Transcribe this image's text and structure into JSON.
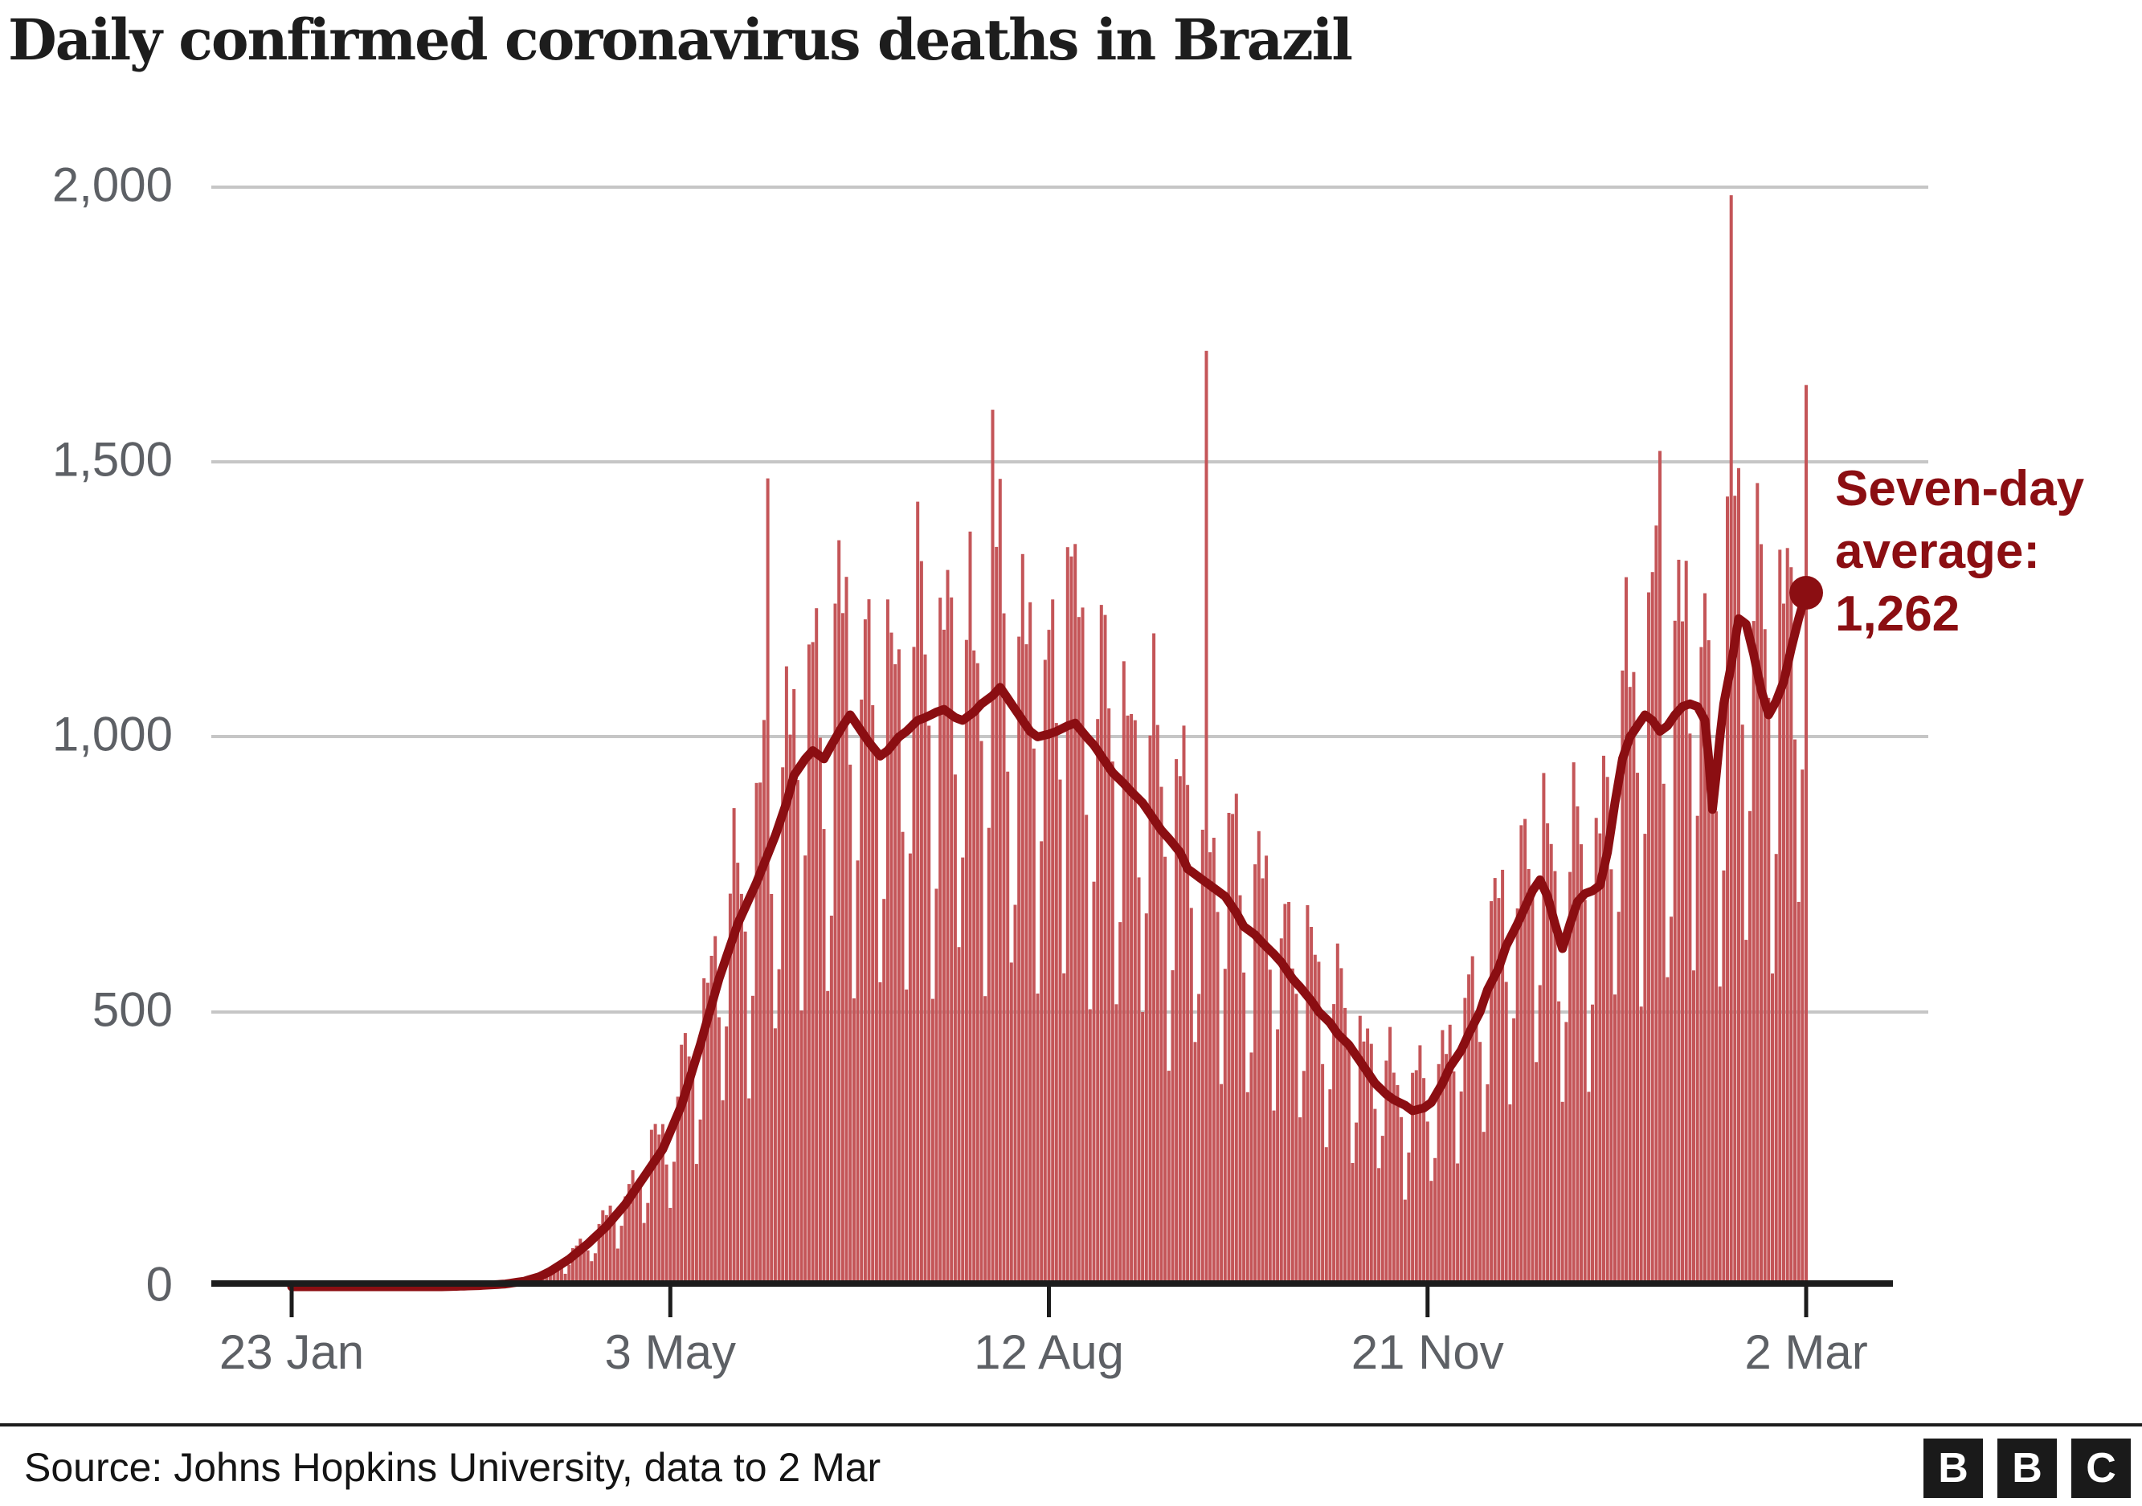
{
  "title": "Daily confirmed coronavirus deaths in Brazil",
  "source_line": "Source: Johns Hopkins University, data to 2 Mar",
  "annotation": {
    "line1": "Seven-day",
    "line2": "average:",
    "line3": "1,262",
    "value": 1262
  },
  "logo": {
    "letter1": "B",
    "letter2": "B",
    "letter3": "C"
  },
  "colors": {
    "bar": "#c45558",
    "avg_line": "#8b0e12",
    "grid": "#c6c6c6",
    "axis": "#1c1c1c",
    "tick_label": "#5d6065",
    "title_text": "#1d1d1d",
    "source_text": "#141414",
    "annotation_text": "#8b0e12",
    "logo_bg": "#1a1a1a",
    "logo_fg": "#ffffff",
    "background": "#ffffff"
  },
  "y_axis": {
    "ticks": [
      {
        "label": "2,000",
        "value": 2000
      },
      {
        "label": "1,500",
        "value": 1500
      },
      {
        "label": "1,000",
        "value": 1000
      },
      {
        "label": "500",
        "value": 500
      },
      {
        "label": "0",
        "value": 0
      }
    ],
    "max": 2000
  },
  "x_axis": {
    "ticks": [
      {
        "label": "23 Jan",
        "day": 0
      },
      {
        "label": "3 May",
        "day": 101
      },
      {
        "label": "12 Aug",
        "day": 202
      },
      {
        "label": "21 Nov",
        "day": 303
      },
      {
        "label": "2 Mar",
        "day": 404
      }
    ]
  },
  "chart_data": {
    "type": "bar+line",
    "title": "Daily confirmed coronavirus deaths in Brazil",
    "x_start": "23 Jan 2020",
    "x_end": "2 Mar 2021",
    "num_days": 405,
    "ylim": [
      0,
      2000
    ],
    "grid": "horizontal",
    "legend": "inline annotation at line end",
    "series_info": [
      {
        "name": "Daily confirmed deaths",
        "type": "bar"
      },
      {
        "name": "Seven-day average",
        "type": "line",
        "end_value": 1262
      }
    ],
    "seven_day_avg_anchors": [
      [
        0,
        0
      ],
      [
        40,
        0
      ],
      [
        50,
        2
      ],
      [
        57,
        5
      ],
      [
        62,
        10
      ],
      [
        66,
        18
      ],
      [
        69,
        28
      ],
      [
        74,
        50
      ],
      [
        79,
        78
      ],
      [
        84,
        110
      ],
      [
        89,
        150
      ],
      [
        94,
        200
      ],
      [
        99,
        250
      ],
      [
        104,
        330
      ],
      [
        109,
        440
      ],
      [
        114,
        560
      ],
      [
        119,
        660
      ],
      [
        124,
        735
      ],
      [
        129,
        820
      ],
      [
        132,
        880
      ],
      [
        134,
        930
      ],
      [
        137,
        960
      ],
      [
        139,
        975
      ],
      [
        142,
        960
      ],
      [
        144,
        985
      ],
      [
        147,
        1020
      ],
      [
        149,
        1040
      ],
      [
        152,
        1010
      ],
      [
        154,
        990
      ],
      [
        157,
        965
      ],
      [
        159,
        975
      ],
      [
        162,
        1000
      ],
      [
        164,
        1010
      ],
      [
        167,
        1030
      ],
      [
        169,
        1035
      ],
      [
        172,
        1045
      ],
      [
        174,
        1050
      ],
      [
        177,
        1035
      ],
      [
        179,
        1030
      ],
      [
        182,
        1045
      ],
      [
        184,
        1060
      ],
      [
        187,
        1075
      ],
      [
        189,
        1090
      ],
      [
        191,
        1070
      ],
      [
        194,
        1040
      ],
      [
        197,
        1010
      ],
      [
        199,
        1000
      ],
      [
        202,
        1005
      ],
      [
        204,
        1010
      ],
      [
        207,
        1020
      ],
      [
        209,
        1025
      ],
      [
        212,
        1000
      ],
      [
        214,
        985
      ],
      [
        217,
        955
      ],
      [
        219,
        935
      ],
      [
        222,
        915
      ],
      [
        224,
        900
      ],
      [
        227,
        880
      ],
      [
        229,
        860
      ],
      [
        232,
        830
      ],
      [
        234,
        815
      ],
      [
        237,
        790
      ],
      [
        239,
        760
      ],
      [
        242,
        745
      ],
      [
        244,
        735
      ],
      [
        247,
        720
      ],
      [
        249,
        710
      ],
      [
        252,
        680
      ],
      [
        254,
        655
      ],
      [
        257,
        640
      ],
      [
        259,
        625
      ],
      [
        262,
        605
      ],
      [
        264,
        590
      ],
      [
        267,
        560
      ],
      [
        269,
        545
      ],
      [
        272,
        520
      ],
      [
        274,
        500
      ],
      [
        277,
        480
      ],
      [
        279,
        460
      ],
      [
        282,
        440
      ],
      [
        284,
        420
      ],
      [
        287,
        390
      ],
      [
        289,
        370
      ],
      [
        292,
        350
      ],
      [
        294,
        340
      ],
      [
        297,
        330
      ],
      [
        299,
        320
      ],
      [
        302,
        325
      ],
      [
        304,
        335
      ],
      [
        307,
        370
      ],
      [
        309,
        400
      ],
      [
        312,
        430
      ],
      [
        314,
        460
      ],
      [
        317,
        500
      ],
      [
        319,
        540
      ],
      [
        322,
        580
      ],
      [
        324,
        620
      ],
      [
        327,
        660
      ],
      [
        329,
        690
      ],
      [
        331,
        720
      ],
      [
        333,
        740
      ],
      [
        335,
        710
      ],
      [
        337,
        660
      ],
      [
        339,
        615
      ],
      [
        341,
        660
      ],
      [
        343,
        700
      ],
      [
        345,
        715
      ],
      [
        347,
        720
      ],
      [
        349,
        730
      ],
      [
        351,
        790
      ],
      [
        353,
        880
      ],
      [
        355,
        960
      ],
      [
        357,
        1000
      ],
      [
        359,
        1020
      ],
      [
        361,
        1040
      ],
      [
        363,
        1030
      ],
      [
        365,
        1010
      ],
      [
        367,
        1020
      ],
      [
        369,
        1040
      ],
      [
        371,
        1055
      ],
      [
        373,
        1060
      ],
      [
        375,
        1055
      ],
      [
        377,
        1030
      ],
      [
        378,
        960
      ],
      [
        379,
        868
      ],
      [
        380,
        930
      ],
      [
        381,
        1000
      ],
      [
        382,
        1060
      ],
      [
        384,
        1130
      ],
      [
        386,
        1215
      ],
      [
        388,
        1205
      ],
      [
        390,
        1150
      ],
      [
        392,
        1085
      ],
      [
        394,
        1040
      ],
      [
        396,
        1065
      ],
      [
        398,
        1100
      ],
      [
        400,
        1160
      ],
      [
        402,
        1215
      ],
      [
        404,
        1262
      ]
    ],
    "weekday_factors_sun_to_sat": [
      0.54,
      0.74,
      1.18,
      1.26,
      1.22,
      1.14,
      0.92
    ],
    "start_weekday_offset": 4,
    "daily_wobble": {
      "a1": 0.07,
      "f1": 2.3,
      "a2": 0.05,
      "f2": 0.61
    },
    "bar_spikes": {
      "127": 1470,
      "187": 1595,
      "207": 1345,
      "244": 1702,
      "365": 1520,
      "384": 1985,
      "404": 1640
    }
  }
}
